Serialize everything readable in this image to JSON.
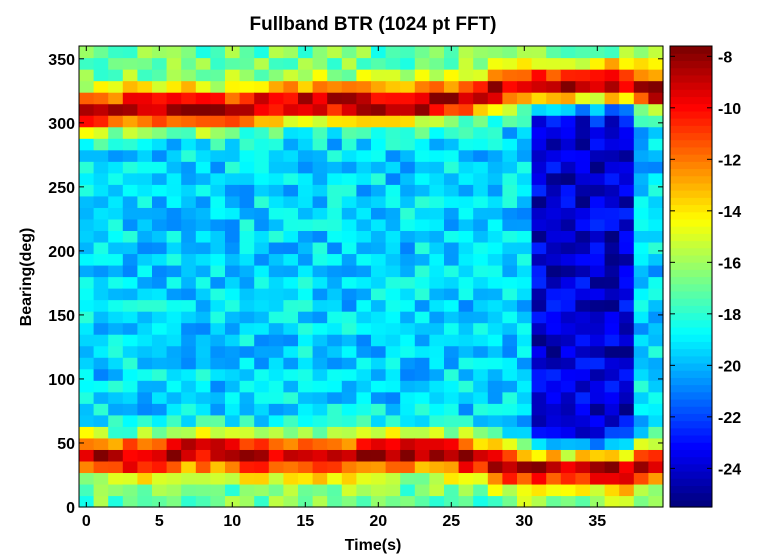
{
  "chart_data": {
    "type": "heatmap",
    "title": "Fullband BTR (1024 pt FFT)",
    "xlabel": "Time(s)",
    "ylabel": "Bearing(deg)",
    "xlim": [
      -0.5,
      39.5
    ],
    "ylim": [
      0,
      360
    ],
    "x_ticks": [
      0,
      5,
      10,
      15,
      20,
      25,
      30,
      35
    ],
    "y_ticks": [
      0,
      50,
      100,
      150,
      200,
      250,
      300,
      350
    ],
    "x_tick_labels": [
      "0",
      "5",
      "10",
      "15",
      "20",
      "25",
      "30",
      "35"
    ],
    "y_tick_labels": [
      "0",
      "50",
      "100",
      "150",
      "200",
      "250",
      "300",
      "350"
    ],
    "colorbar": {
      "colormap": "jet",
      "range": [
        -25.5,
        -7.6
      ],
      "ticks": [
        -8,
        -10,
        -12,
        -14,
        -16,
        -18,
        -20,
        -22,
        -24
      ],
      "tick_labels": [
        "-8",
        "-10",
        "-12",
        "-14",
        "-16",
        "-18",
        "-20",
        "-22",
        "-24"
      ]
    },
    "time_columns": 40,
    "bearing_rows": 40,
    "features": {
      "lower_band_center_deg": [
        42,
        41,
        40,
        40,
        41,
        42,
        43,
        44,
        44,
        43,
        42,
        41,
        40,
        40,
        40,
        40,
        40,
        40,
        41,
        41,
        42,
        43,
        44,
        44,
        43,
        42,
        41,
        38,
        35,
        32,
        30,
        30,
        30,
        30,
        30,
        30,
        30,
        30,
        32,
        35
      ],
      "upper_band_center_deg": [
        308,
        309,
        310,
        311,
        311,
        312,
        312,
        311,
        310,
        310,
        311,
        312,
        313,
        314,
        315,
        316,
        316,
        316,
        315,
        315,
        314,
        314,
        314,
        315,
        316,
        318,
        320,
        322,
        325,
        327,
        328,
        329,
        330,
        330,
        330,
        330,
        330,
        330,
        328,
        325
      ],
      "band_peak_dB": -8.5,
      "edge_dB": -17,
      "between_bands_dB": -19.5,
      "between_bands_dB_t31_to_37": -24
    }
  }
}
